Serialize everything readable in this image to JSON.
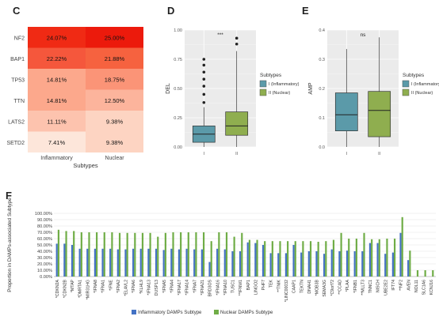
{
  "panels": {
    "C": "C",
    "D": "D",
    "E": "E",
    "F": "F"
  },
  "chart_data": [
    {
      "id": "C",
      "type": "heatmap",
      "xlabel": "Subtypes",
      "columns": [
        "Inflammatory",
        "Nuclear"
      ],
      "rows": [
        "NF2",
        "BAP1",
        "TP53",
        "TTN",
        "LATS2",
        "SETD2"
      ],
      "cells": [
        [
          "24.07%",
          "25.00%"
        ],
        [
          "22.22%",
          "21.88%"
        ],
        [
          "14.81%",
          "18.75%"
        ],
        [
          "14.81%",
          "12.50%"
        ],
        [
          "11.11%",
          "9.38%"
        ],
        [
          "7.41%",
          "9.38%"
        ]
      ],
      "values": [
        [
          24.07,
          25.0
        ],
        [
          22.22,
          21.88
        ],
        [
          14.81,
          18.75
        ],
        [
          14.81,
          12.5
        ],
        [
          11.11,
          9.38
        ],
        [
          7.41,
          9.38
        ]
      ],
      "colors": [
        [
          "#f02a14",
          "#ec1a0c"
        ],
        [
          "#f5573c",
          "#f6623f"
        ],
        [
          "#fca88c",
          "#fb9477"
        ],
        [
          "#fca88c",
          "#fcb49c"
        ],
        [
          "#fdc3ae",
          "#fdd4c2"
        ],
        [
          "#fde6da",
          "#fdd4c2"
        ]
      ]
    },
    {
      "id": "D",
      "type": "box",
      "ylabel": "DEL",
      "yticks": [
        "0.00",
        "0.25",
        "0.50",
        "0.75",
        "1.00"
      ],
      "ylim": [
        0,
        1.0
      ],
      "xticks": [
        "I",
        "II"
      ],
      "significance": "***",
      "legend": {
        "title": "Subtypes",
        "entries": [
          "I (Inflammatory)",
          "II (Nuclear)"
        ]
      },
      "colors": [
        "#5b9aa9",
        "#8fae4f"
      ],
      "boxes": [
        {
          "low": 0.0,
          "q1": 0.04,
          "median": 0.11,
          "q3": 0.18,
          "high": 0.34,
          "outliers": [
            0.38,
            0.45,
            0.52,
            0.58,
            0.64,
            0.7,
            0.75
          ]
        },
        {
          "low": 0.0,
          "q1": 0.1,
          "median": 0.18,
          "q3": 0.3,
          "high": 0.82,
          "outliers": [
            0.88,
            0.93
          ]
        }
      ]
    },
    {
      "id": "E",
      "type": "box",
      "ylabel": "AMP",
      "yticks": [
        "0.0",
        "0.1",
        "0.2",
        "0.3",
        "0.4"
      ],
      "ylim": [
        0,
        0.4
      ],
      "xticks": [
        "I",
        "II"
      ],
      "significance": "ns",
      "legend": {
        "title": "Subtypes",
        "entries": [
          "I (Inflammatory)",
          "II (Nuclear)"
        ]
      },
      "colors": [
        "#5b9aa9",
        "#8fae4f"
      ],
      "boxes": [
        {
          "low": 0.0,
          "q1": 0.055,
          "median": 0.11,
          "q3": 0.185,
          "high": 0.335,
          "outliers": []
        },
        {
          "low": 0.0,
          "q1": 0.035,
          "median": 0.125,
          "q3": 0.19,
          "high": 0.375,
          "outliers": []
        }
      ]
    },
    {
      "id": "F",
      "type": "bar",
      "ylabel": "Proportion in DAMPs-associated Subtype",
      "yticks": [
        "0.00%",
        "10.00%",
        "20.00%",
        "30.00%",
        "40.00%",
        "50.00%",
        "60.00%",
        "70.00%",
        "80.00%",
        "90.00%",
        "100.00%"
      ],
      "ylim": [
        0,
        100
      ],
      "categories": [
        "*CDKN2A",
        "*CDKN2B",
        "*MTAP",
        "*DMRTA1",
        "*MIR31HG",
        "*IFNA8",
        "*IFNA1",
        "*IFNE",
        "*IFNA2",
        "*ELAVL2",
        "*IFNA6",
        "*KLHL9",
        "*IFNA13",
        "DUSP13",
        "*IFNA5",
        "*IFNA4",
        "*IFNA17",
        "*IFNA14",
        "*IFNA7",
        "*IFNA21",
        "BRD3OS",
        "*IFNA16",
        "*IFNA10",
        "TUSC1",
        "**IFNW1",
        "BAP1",
        "LINGO2",
        "PHF7",
        "TEK",
        "**TNIK",
        "*LINC00032",
        "CAAP1",
        "TEKTN",
        "DNAH1",
        "*MOB3B",
        "SEMA3G",
        "*C9orf72",
        "**CCAD",
        "*PLAA",
        "*IFNB1",
        "**MLLT3",
        "TNNC1",
        "NISCH",
        "UBE2E2",
        "IFT74",
        "**NF2",
        "AVEN",
        "NOL11",
        "SLC1A6",
        "KCNJ16"
      ],
      "series": [
        {
          "name": "Inflammatory DAMPs Subtype",
          "color": "#4472c4",
          "values": [
            52,
            52,
            50,
            44,
            44,
            44,
            44,
            44,
            43,
            43,
            44,
            44,
            44,
            44,
            42,
            44,
            43,
            44,
            43,
            43,
            23,
            44,
            43,
            40,
            40,
            54,
            53,
            50,
            37,
            37,
            37,
            50,
            38,
            40,
            40,
            36,
            43,
            40,
            41,
            40,
            40,
            53,
            53,
            36,
            38,
            69,
            26,
            0,
            0,
            0
          ]
        },
        {
          "name": "Nuclear DAMPs Subtype",
          "color": "#70ad47",
          "values": [
            74,
            72,
            72,
            70,
            70,
            70,
            70,
            70,
            69,
            69,
            69,
            69,
            69,
            63,
            69,
            70,
            70,
            70,
            70,
            70,
            56,
            70,
            70,
            63,
            69,
            58,
            58,
            56,
            56,
            56,
            56,
            56,
            56,
            56,
            55,
            56,
            58,
            69,
            60,
            60,
            69,
            59,
            59,
            60,
            60,
            94,
            41,
            10,
            10,
            10
          ]
        }
      ]
    }
  ]
}
